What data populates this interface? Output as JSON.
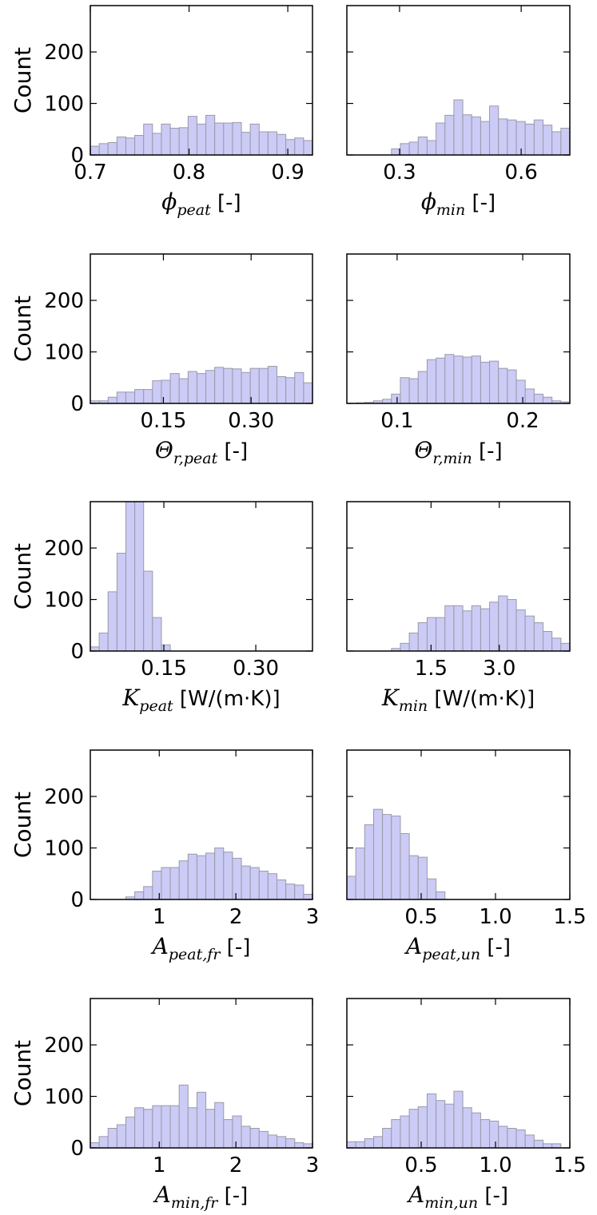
{
  "chart_data": [
    {
      "type": "histogram",
      "ylabel": "Count",
      "xlabel": {
        "symbol": "ϕ",
        "subscript": "peat",
        "unit": "[-]"
      },
      "color": "#c8c8f6",
      "edgecolor": "#9a9aa8",
      "bins": [
        0.7,
        0.709,
        0.718,
        0.727,
        0.736,
        0.745,
        0.754,
        0.763,
        0.772,
        0.781,
        0.79,
        0.799,
        0.808,
        0.817,
        0.826,
        0.835,
        0.844,
        0.853,
        0.862,
        0.871,
        0.88,
        0.889,
        0.898,
        0.907,
        0.916,
        0.925
      ],
      "values": [
        17,
        22,
        24,
        35,
        33,
        38,
        60,
        42,
        60,
        52,
        53,
        75,
        60,
        77,
        62,
        62,
        63,
        44,
        60,
        45,
        45,
        40,
        30,
        33,
        28
      ],
      "xlim": [
        0.7,
        0.925
      ],
      "xticks": [
        0.7,
        0.8,
        0.9
      ],
      "ylim": [
        0,
        290
      ],
      "yticks": [
        0,
        100,
        200
      ]
    },
    {
      "type": "histogram",
      "xlabel": {
        "symbol": "ϕ",
        "subscript": "min",
        "unit": "[-]"
      },
      "color": "#c8c8f6",
      "edgecolor": "#9a9aa8",
      "bins": [
        0.17,
        0.192,
        0.214,
        0.236,
        0.258,
        0.28,
        0.302,
        0.324,
        0.346,
        0.368,
        0.39,
        0.412,
        0.434,
        0.456,
        0.478,
        0.5,
        0.522,
        0.544,
        0.566,
        0.588,
        0.61,
        0.632,
        0.654,
        0.676,
        0.698,
        0.72
      ],
      "values": [
        0,
        0,
        0,
        0,
        0,
        12,
        22,
        25,
        35,
        28,
        62,
        77,
        107,
        78,
        74,
        65,
        95,
        70,
        68,
        65,
        60,
        68,
        58,
        45,
        52
      ],
      "xlim": [
        0.17,
        0.72
      ],
      "xticks": [
        0.3,
        0.6
      ],
      "ylim": [
        0,
        290
      ],
      "yticks": [
        0,
        100,
        200
      ],
      "ytick_labels": false
    },
    {
      "type": "histogram",
      "ylabel": "Count",
      "xlabel": {
        "symbol": "Θ",
        "subscript": "r,peat",
        "unit": "[-]"
      },
      "color": "#c8c8f6",
      "edgecolor": "#9a9aa8",
      "bins": [
        0.025,
        0.0402,
        0.0554,
        0.0706,
        0.0858,
        0.101,
        0.1162,
        0.1314,
        0.1466,
        0.1618,
        0.177,
        0.1922,
        0.2074,
        0.2226,
        0.2378,
        0.253,
        0.2682,
        0.2834,
        0.2986,
        0.3138,
        0.329,
        0.3442,
        0.3594,
        0.3746,
        0.3898,
        0.405
      ],
      "values": [
        5,
        5,
        12,
        22,
        22,
        27,
        27,
        44,
        45,
        58,
        48,
        62,
        58,
        64,
        70,
        68,
        67,
        60,
        68,
        68,
        72,
        52,
        50,
        60,
        40
      ],
      "xlim": [
        0.025,
        0.405
      ],
      "xticks": [
        0.15,
        {
          "value": 0.3,
          "label": "0.30"
        }
      ],
      "ylim": [
        0,
        290
      ],
      "yticks": [
        0,
        100,
        200
      ]
    },
    {
      "type": "histogram",
      "xlabel": {
        "symbol": "Θ",
        "subscript": "r,min",
        "unit": "[-]"
      },
      "color": "#c8c8f6",
      "edgecolor": "#9a9aa8",
      "bins": [
        0.06,
        0.0671,
        0.0742,
        0.0813,
        0.0884,
        0.0955,
        0.1026,
        0.1097,
        0.1168,
        0.1239,
        0.131,
        0.1381,
        0.1452,
        0.1523,
        0.1594,
        0.1665,
        0.1736,
        0.1807,
        0.1878,
        0.1949,
        0.202,
        0.2091,
        0.2162,
        0.2233,
        0.2304,
        0.2375
      ],
      "values": [
        0,
        1,
        2,
        5,
        8,
        18,
        50,
        48,
        62,
        85,
        88,
        95,
        92,
        90,
        92,
        80,
        82,
        68,
        65,
        45,
        28,
        18,
        12,
        5,
        3
      ],
      "xlim": [
        0.06,
        0.2375
      ],
      "xticks": [
        0.1,
        0.2
      ],
      "ylim": [
        0,
        290
      ],
      "yticks": [
        0,
        100,
        200
      ],
      "ytick_labels": false
    },
    {
      "type": "histogram",
      "ylabel": "Count",
      "xlabel": {
        "symbol": "K",
        "subscript": "peat",
        "unit": "[W/(m·K)]"
      },
      "color": "#c8c8f6",
      "edgecolor": "#9a9aa8",
      "bins": [
        0.03,
        0.0445,
        0.059,
        0.0735,
        0.088,
        0.1025,
        0.117,
        0.1315,
        0.146,
        0.1605,
        0.175,
        0.1895,
        0.204,
        0.2185,
        0.233,
        0.2475,
        0.262,
        0.2765,
        0.291,
        0.3055,
        0.32,
        0.3345,
        0.349,
        0.3635,
        0.378,
        0.3925
      ],
      "values": [
        8,
        35,
        115,
        190,
        340,
        300,
        155,
        65,
        12,
        0,
        0,
        0,
        0,
        0,
        0,
        0,
        0,
        0,
        0,
        0,
        0,
        0,
        0,
        0,
        0
      ],
      "xlim": [
        0.03,
        0.3925
      ],
      "xticks": [
        0.15,
        {
          "value": 0.3,
          "label": "0.30"
        }
      ],
      "ylim": [
        0,
        290
      ],
      "yticks": [
        0,
        100,
        200
      ]
    },
    {
      "type": "histogram",
      "xlabel": {
        "symbol": "K",
        "subscript": "min",
        "unit": "[W/(m·K)]"
      },
      "color": "#c8c8f6",
      "edgecolor": "#9a9aa8",
      "bins": [
        -0.35,
        -0.154,
        0.042,
        0.238,
        0.434,
        0.63,
        0.826,
        1.022,
        1.218,
        1.414,
        1.61,
        1.806,
        2.002,
        2.198,
        2.394,
        2.59,
        2.786,
        2.982,
        3.178,
        3.374,
        3.57,
        3.766,
        3.962,
        4.158,
        4.354,
        4.55
      ],
      "values": [
        0,
        0,
        0,
        0,
        0,
        5,
        15,
        35,
        55,
        65,
        65,
        88,
        88,
        78,
        88,
        82,
        95,
        107,
        100,
        80,
        68,
        55,
        38,
        25,
        15
      ],
      "xlim": [
        -0.35,
        4.55
      ],
      "xticks": [
        1.5,
        {
          "value": 3,
          "label": "3.0"
        }
      ],
      "ylim": [
        0,
        290
      ],
      "yticks": [
        0,
        100,
        200
      ],
      "ytick_labels": false
    },
    {
      "type": "histogram",
      "ylabel": "Count",
      "xlabel": {
        "symbol": "A",
        "subscript": "peat,fr",
        "unit": "[-]"
      },
      "color": "#c8c8f6",
      "edgecolor": "#9a9aa8",
      "bins": [
        0.1,
        0.216,
        0.332,
        0.448,
        0.564,
        0.68,
        0.796,
        0.912,
        1.028,
        1.144,
        1.26,
        1.376,
        1.492,
        1.608,
        1.724,
        1.84,
        1.956,
        2.072,
        2.188,
        2.304,
        2.42,
        2.536,
        2.652,
        2.768,
        2.884,
        3.0
      ],
      "values": [
        0,
        0,
        0,
        0,
        5,
        15,
        25,
        55,
        62,
        62,
        75,
        88,
        85,
        90,
        100,
        92,
        80,
        65,
        62,
        55,
        50,
        38,
        30,
        28,
        10
      ],
      "xlim": [
        0.1,
        3
      ],
      "xticks": [
        1,
        2,
        3
      ],
      "ylim": [
        0,
        290
      ],
      "yticks": [
        0,
        100,
        200
      ]
    },
    {
      "type": "histogram",
      "xlabel": {
        "symbol": "A",
        "subscript": "peat,un",
        "unit": "[-]"
      },
      "color": "#c8c8f6",
      "edgecolor": "#9a9aa8",
      "bins": [
        0,
        0.06,
        0.12,
        0.18,
        0.24,
        0.3,
        0.36,
        0.42,
        0.48,
        0.54,
        0.6,
        0.66,
        0.72,
        0.78,
        0.84,
        0.9,
        0.96,
        1.02,
        1.08,
        1.14,
        1.2,
        1.26,
        1.32,
        1.38,
        1.44,
        1.5
      ],
      "values": [
        45,
        100,
        145,
        175,
        165,
        162,
        128,
        85,
        82,
        40,
        15,
        0,
        0,
        0,
        0,
        0,
        0,
        0,
        0,
        0,
        0,
        0,
        0,
        0,
        0
      ],
      "xlim": [
        0,
        1.5
      ],
      "xticks": [
        0.5,
        {
          "value": 1,
          "label": "1.0"
        },
        1.5
      ],
      "ylim": [
        0,
        290
      ],
      "yticks": [
        0,
        100,
        200
      ],
      "ytick_labels": false
    },
    {
      "type": "histogram",
      "ylabel": "Count",
      "xlabel": {
        "symbol": "A",
        "subscript": "min,fr",
        "unit": "[-]"
      },
      "color": "#c8c8f6",
      "edgecolor": "#9a9aa8",
      "bins": [
        0.1,
        0.216,
        0.332,
        0.448,
        0.564,
        0.68,
        0.796,
        0.912,
        1.028,
        1.144,
        1.26,
        1.376,
        1.492,
        1.608,
        1.724,
        1.84,
        1.956,
        2.072,
        2.188,
        2.304,
        2.42,
        2.536,
        2.652,
        2.768,
        2.884,
        3.0
      ],
      "values": [
        10,
        22,
        38,
        45,
        60,
        78,
        75,
        82,
        82,
        82,
        122,
        78,
        108,
        75,
        88,
        55,
        62,
        42,
        38,
        32,
        25,
        22,
        18,
        10,
        8
      ],
      "xlim": [
        0.1,
        3
      ],
      "xticks": [
        1,
        2,
        3
      ],
      "ylim": [
        0,
        290
      ],
      "yticks": [
        0,
        100,
        200
      ]
    },
    {
      "type": "histogram",
      "xlabel": {
        "symbol": "A",
        "subscript": "min,un",
        "unit": "[-]"
      },
      "color": "#c8c8f6",
      "edgecolor": "#9a9aa8",
      "bins": [
        0,
        0.06,
        0.12,
        0.18,
        0.24,
        0.3,
        0.36,
        0.42,
        0.48,
        0.54,
        0.6,
        0.66,
        0.72,
        0.78,
        0.84,
        0.9,
        0.96,
        1.02,
        1.08,
        1.14,
        1.2,
        1.26,
        1.32,
        1.38,
        1.44,
        1.5
      ],
      "values": [
        12,
        12,
        18,
        22,
        38,
        55,
        62,
        75,
        80,
        105,
        92,
        85,
        110,
        78,
        68,
        55,
        52,
        42,
        38,
        35,
        25,
        15,
        8,
        8,
        0
      ],
      "xlim": [
        0,
        1.5
      ],
      "xticks": [
        0.5,
        {
          "value": 1,
          "label": "1.0"
        },
        1.5
      ],
      "ylim": [
        0,
        290
      ],
      "yticks": [
        0,
        100,
        200
      ],
      "ytick_labels": false
    }
  ]
}
